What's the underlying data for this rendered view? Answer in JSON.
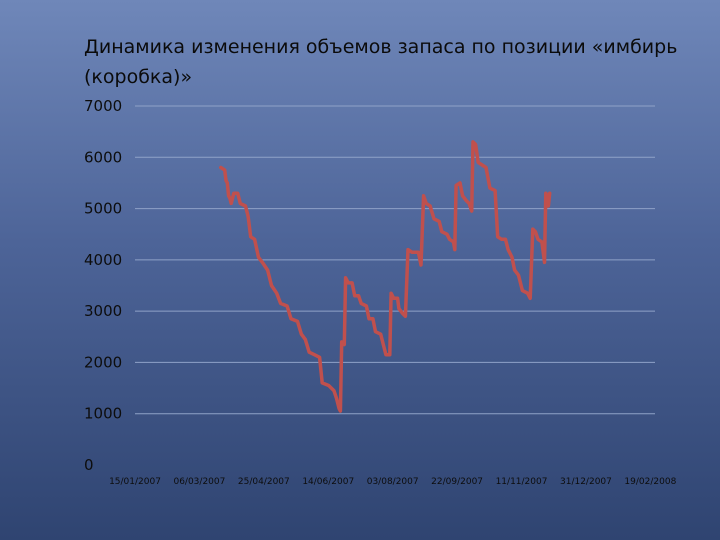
{
  "chart_data": {
    "type": "line",
    "title": "Динамика изменения объемов запаса по позиции «имбирь (коробка)»",
    "y_ticks": [
      "7000",
      "6000",
      "5000",
      "4000",
      "3000",
      "2000",
      "1000",
      "0"
    ],
    "x_ticks": [
      "15/01/2007",
      "06/03/2007",
      "25/04/2007",
      "14/06/2007",
      "03/08/2007",
      "22/09/2007",
      "11/11/2007",
      "31/12/2007",
      "19/02/2008"
    ],
    "ylim": [
      0,
      7000
    ],
    "x_start": "2007-01-15",
    "x_end": "2008-02-19",
    "grid": true,
    "legend": "none",
    "line_color": "#c0504d",
    "series": [
      {
        "values": [
          [
            "2007-03-22",
            5800
          ],
          [
            "2007-03-25",
            5750
          ],
          [
            "2007-03-26",
            5550
          ],
          [
            "2007-03-27",
            5500
          ],
          [
            "2007-03-28",
            5250
          ],
          [
            "2007-03-29",
            5200
          ],
          [
            "2007-03-30",
            5100
          ],
          [
            "2007-04-01",
            5300
          ],
          [
            "2007-04-04",
            5300
          ],
          [
            "2007-04-06",
            5100
          ],
          [
            "2007-04-10",
            5050
          ],
          [
            "2007-04-12",
            4850
          ],
          [
            "2007-04-14",
            4450
          ],
          [
            "2007-04-17",
            4400
          ],
          [
            "2007-04-20",
            4050
          ],
          [
            "2007-04-23",
            3950
          ],
          [
            "2007-04-27",
            3800
          ],
          [
            "2007-04-30",
            3500
          ],
          [
            "2007-05-04",
            3350
          ],
          [
            "2007-05-07",
            3150
          ],
          [
            "2007-05-12",
            3100
          ],
          [
            "2007-05-15",
            2850
          ],
          [
            "2007-05-20",
            2800
          ],
          [
            "2007-05-23",
            2550
          ],
          [
            "2007-05-26",
            2450
          ],
          [
            "2007-05-29",
            2200
          ],
          [
            "2007-06-02",
            2150
          ],
          [
            "2007-06-06",
            2100
          ],
          [
            "2007-06-08",
            1600
          ],
          [
            "2007-06-13",
            1550
          ],
          [
            "2007-06-17",
            1450
          ],
          [
            "2007-06-19",
            1300
          ],
          [
            "2007-06-21",
            1100
          ],
          [
            "2007-06-22",
            1050
          ],
          [
            "2007-06-23",
            2400
          ],
          [
            "2007-06-25",
            2350
          ],
          [
            "2007-06-26",
            3650
          ],
          [
            "2007-06-28",
            3550
          ],
          [
            "2007-07-01",
            3550
          ],
          [
            "2007-07-03",
            3300
          ],
          [
            "2007-07-06",
            3300
          ],
          [
            "2007-07-08",
            3150
          ],
          [
            "2007-07-12",
            3100
          ],
          [
            "2007-07-14",
            2850
          ],
          [
            "2007-07-17",
            2850
          ],
          [
            "2007-07-19",
            2600
          ],
          [
            "2007-07-23",
            2550
          ],
          [
            "2007-07-25",
            2350
          ],
          [
            "2007-07-27",
            2150
          ],
          [
            "2007-07-30",
            2150
          ],
          [
            "2007-07-31",
            3350
          ],
          [
            "2007-08-02",
            3250
          ],
          [
            "2007-08-05",
            3250
          ],
          [
            "2007-08-06",
            3050
          ],
          [
            "2007-08-09",
            2950
          ],
          [
            "2007-08-11",
            2900
          ],
          [
            "2007-08-13",
            4200
          ],
          [
            "2007-08-16",
            4150
          ],
          [
            "2007-08-21",
            4150
          ],
          [
            "2007-08-23",
            3900
          ],
          [
            "2007-08-25",
            5250
          ],
          [
            "2007-08-27",
            5100
          ],
          [
            "2007-08-30",
            5050
          ],
          [
            "2007-09-02",
            4800
          ],
          [
            "2007-09-06",
            4750
          ],
          [
            "2007-09-08",
            4550
          ],
          [
            "2007-09-12",
            4500
          ],
          [
            "2007-09-14",
            4400
          ],
          [
            "2007-09-17",
            4350
          ],
          [
            "2007-09-18",
            4200
          ],
          [
            "2007-09-19",
            5450
          ],
          [
            "2007-09-22",
            5500
          ],
          [
            "2007-09-24",
            5250
          ],
          [
            "2007-09-27",
            5150
          ],
          [
            "2007-09-29",
            5100
          ],
          [
            "2007-10-01",
            4950
          ],
          [
            "2007-10-02",
            6300
          ],
          [
            "2007-10-04",
            6250
          ],
          [
            "2007-10-06",
            5900
          ],
          [
            "2007-10-09",
            5850
          ],
          [
            "2007-10-12",
            5800
          ],
          [
            "2007-10-15",
            5400
          ],
          [
            "2007-10-19",
            5350
          ],
          [
            "2007-10-21",
            4450
          ],
          [
            "2007-10-24",
            4400
          ],
          [
            "2007-10-27",
            4400
          ],
          [
            "2007-10-29",
            4200
          ],
          [
            "2007-11-01",
            4050
          ],
          [
            "2007-11-03",
            3800
          ],
          [
            "2007-11-06",
            3700
          ],
          [
            "2007-11-09",
            3400
          ],
          [
            "2007-11-13",
            3350
          ],
          [
            "2007-11-15",
            3250
          ],
          [
            "2007-11-17",
            4600
          ],
          [
            "2007-11-19",
            4550
          ],
          [
            "2007-11-21",
            4400
          ],
          [
            "2007-11-24",
            4350
          ],
          [
            "2007-11-26",
            3950
          ],
          [
            "2007-11-27",
            5300
          ],
          [
            "2007-11-28",
            5250
          ],
          [
            "2007-11-29",
            5050
          ],
          [
            "2007-11-30",
            5300
          ]
        ]
      }
    ]
  }
}
